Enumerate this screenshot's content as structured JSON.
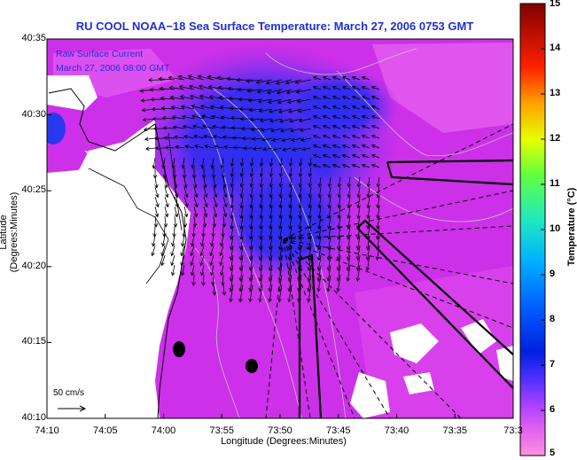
{
  "title": "RU COOL   NOAA−18  Sea Surface Temperature:  March 27, 2006 0753 GMT",
  "legend": {
    "current_label": "Raw Surface Current",
    "current_time": "March 27, 2006 08:00 GMT"
  },
  "scale_label": "50 cm/s",
  "axes": {
    "xlabel": "Longitude (Degrees:Minutes)",
    "ylabel": "Latitude (Degrees:Minutes)",
    "xticks": [
      "74:10",
      "74:05",
      "74:00",
      "73:55",
      "73:50",
      "73:45",
      "73:40",
      "73:35",
      "73:3"
    ],
    "yticks": [
      "40:35",
      "40:30",
      "40:25",
      "40:20",
      "40:15",
      "40:10"
    ]
  },
  "colorbar": {
    "label": "Temperature (°C)",
    "ticks": [
      "15",
      "14",
      "13",
      "12",
      "11",
      "10",
      "9",
      "8",
      "7",
      "6",
      "5"
    ],
    "range": [
      5,
      15
    ],
    "colors": [
      "#ff8fd8",
      "#d040ff",
      "#8030ff",
      "#1828e0",
      "#0070ff",
      "#00c8ff",
      "#20f0c0",
      "#70ff40",
      "#ffff00",
      "#ff9000",
      "#ff1000",
      "#900000"
    ]
  },
  "map": {
    "projection": "lat/lon",
    "region": "New York Bight / Raritan Bay",
    "dominant_color": "#d030e8",
    "cold_color": "#2030f0",
    "land_color": "#ffffff"
  }
}
